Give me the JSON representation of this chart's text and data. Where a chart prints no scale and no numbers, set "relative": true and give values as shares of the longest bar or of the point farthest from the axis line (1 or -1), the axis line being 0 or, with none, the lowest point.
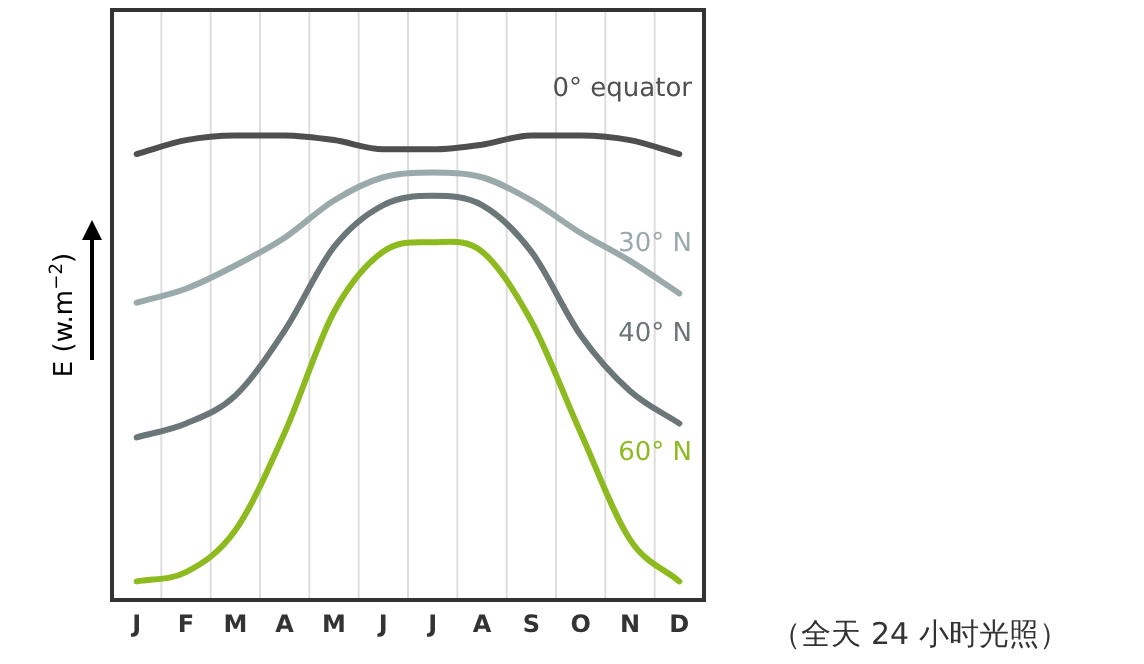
{
  "chart_data": {
    "type": "line",
    "relative": true,
    "ylabel": "E (w.m$^{−2}$)",
    "categories": [
      "J",
      "F",
      "M",
      "A",
      "M",
      "J",
      "J",
      "A",
      "S",
      "O",
      "N",
      "D"
    ],
    "series": [
      {
        "name": "0° equator",
        "color": "#4f4f4f",
        "values": [
          0.96,
          0.99,
          1.0,
          1.0,
          0.99,
          0.97,
          0.97,
          0.98,
          1.0,
          1.0,
          0.99,
          0.96
        ]
      },
      {
        "name": "30° N",
        "color": "#9aa9aa",
        "values": [
          0.64,
          0.67,
          0.72,
          0.78,
          0.86,
          0.91,
          0.92,
          0.91,
          0.86,
          0.79,
          0.73,
          0.66
        ]
      },
      {
        "name": "40° N",
        "color": "#6a7677",
        "values": [
          0.35,
          0.38,
          0.44,
          0.58,
          0.76,
          0.85,
          0.87,
          0.85,
          0.75,
          0.57,
          0.45,
          0.38
        ]
      },
      {
        "name": "60° N",
        "color": "#8dbb1f",
        "values": [
          0.04,
          0.06,
          0.15,
          0.36,
          0.62,
          0.75,
          0.77,
          0.75,
          0.6,
          0.36,
          0.13,
          0.04
        ]
      }
    ],
    "grid": "x",
    "tick_labels": "x",
    "marker": "none",
    "line_style": "solid",
    "annotations": [
      "（全天 24 小时光照）"
    ]
  }
}
